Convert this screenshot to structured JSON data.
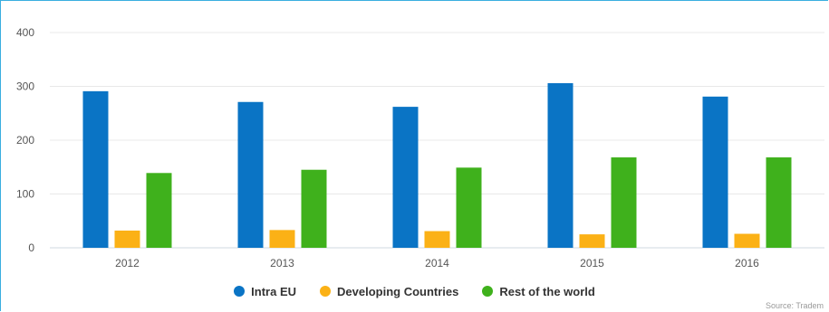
{
  "chart_data": {
    "type": "bar",
    "categories": [
      "2012",
      "2013",
      "2014",
      "2015",
      "2016"
    ],
    "series": [
      {
        "name": "Intra EU",
        "color": "#0a74c5",
        "values": [
          291,
          271,
          262,
          306,
          281
        ]
      },
      {
        "name": "Developing Countries",
        "color": "#fbb116",
        "values": [
          32,
          33,
          31,
          25,
          26
        ]
      },
      {
        "name": "Rest of the world",
        "color": "#3fb11c",
        "values": [
          139,
          145,
          149,
          168,
          168
        ]
      }
    ],
    "ylim": [
      0,
      400
    ],
    "yticks": [
      "0",
      "100",
      "200",
      "300",
      "400"
    ],
    "grid": true,
    "legend_position": "bottom-center"
  },
  "credit": "Source: Tradem"
}
